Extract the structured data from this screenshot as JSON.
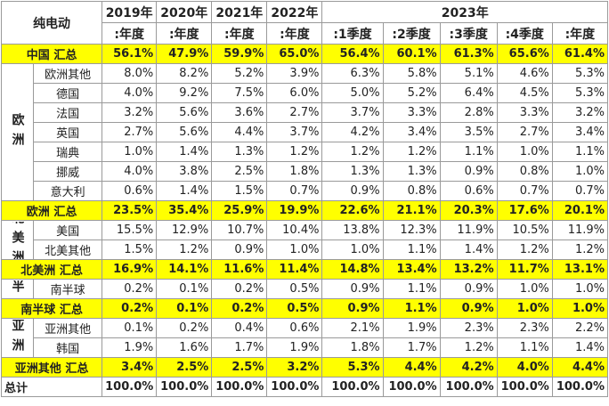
{
  "header": {
    "title": "纯电动",
    "years": [
      "2019年",
      "2020年",
      "2021年",
      "2022年"
    ],
    "year_2023": "2023年",
    "periods": [
      ":年度",
      ":年度",
      ":年度",
      ":年度",
      ":1季度",
      ":2季度",
      ":3季度",
      ":4季度",
      ":年度"
    ]
  },
  "sections": [
    {
      "total": {
        "label": "中国 汇总",
        "values": [
          "56.1%",
          "47.9%",
          "59.9%",
          "65.0%",
          "56.4%",
          "60.1%",
          "61.3%",
          "65.6%",
          "61.4%"
        ]
      }
    },
    {
      "region": "欧洲",
      "rows": [
        {
          "name": "欧洲其他",
          "values": [
            "8.0%",
            "8.2%",
            "5.2%",
            "3.9%",
            "6.3%",
            "5.8%",
            "5.1%",
            "4.6%",
            "5.3%"
          ]
        },
        {
          "name": "德国",
          "values": [
            "4.0%",
            "9.2%",
            "7.5%",
            "6.0%",
            "5.0%",
            "5.2%",
            "6.4%",
            "4.5%",
            "5.3%"
          ]
        },
        {
          "name": "法国",
          "values": [
            "3.2%",
            "5.6%",
            "3.6%",
            "2.7%",
            "3.7%",
            "3.3%",
            "2.8%",
            "3.3%",
            "3.2%"
          ]
        },
        {
          "name": "英国",
          "values": [
            "2.7%",
            "5.6%",
            "4.4%",
            "3.7%",
            "4.2%",
            "3.4%",
            "3.5%",
            "2.7%",
            "3.4%"
          ]
        },
        {
          "name": "瑞典",
          "values": [
            "1.0%",
            "1.4%",
            "1.3%",
            "1.2%",
            "1.2%",
            "1.2%",
            "1.1%",
            "1.0%",
            "1.1%"
          ]
        },
        {
          "name": "挪威",
          "values": [
            "4.0%",
            "3.8%",
            "2.5%",
            "1.8%",
            "1.3%",
            "1.3%",
            "0.9%",
            "0.8%",
            "1.0%"
          ]
        },
        {
          "name": "意大利",
          "values": [
            "0.6%",
            "1.4%",
            "1.5%",
            "0.7%",
            "0.9%",
            "0.8%",
            "0.6%",
            "0.7%",
            "0.7%"
          ]
        }
      ],
      "total": {
        "label": "欧洲 汇总",
        "values": [
          "23.5%",
          "35.4%",
          "25.9%",
          "19.9%",
          "22.6%",
          "21.1%",
          "20.3%",
          "17.6%",
          "20.1%"
        ]
      }
    },
    {
      "region": "北美洲",
      "rows": [
        {
          "name": "美国",
          "values": [
            "15.5%",
            "12.9%",
            "10.7%",
            "10.4%",
            "13.8%",
            "12.3%",
            "11.9%",
            "10.5%",
            "11.9%"
          ]
        },
        {
          "name": "北美其他",
          "values": [
            "1.5%",
            "1.2%",
            "0.9%",
            "1.0%",
            "1.0%",
            "1.1%",
            "1.4%",
            "1.2%",
            "1.2%"
          ]
        }
      ],
      "total": {
        "label": "北美洲 汇总",
        "values": [
          "16.9%",
          "14.1%",
          "11.6%",
          "11.4%",
          "14.8%",
          "13.4%",
          "13.2%",
          "11.7%",
          "13.1%"
        ]
      }
    },
    {
      "region": "南半球",
      "rows": [
        {
          "name": "南半球",
          "values": [
            "0.2%",
            "0.1%",
            "0.2%",
            "0.5%",
            "0.9%",
            "1.1%",
            "0.9%",
            "1.0%",
            "1.0%"
          ]
        }
      ],
      "total": {
        "label": "南半球 汇总",
        "values": [
          "0.2%",
          "0.1%",
          "0.2%",
          "0.5%",
          "0.9%",
          "1.1%",
          "0.9%",
          "1.0%",
          "1.0%"
        ]
      }
    },
    {
      "region": "亚洲",
      "rows": [
        {
          "name": "亚洲其他",
          "values": [
            "0.1%",
            "0.2%",
            "0.4%",
            "0.6%",
            "2.1%",
            "1.9%",
            "2.3%",
            "2.3%",
            "2.2%"
          ]
        },
        {
          "name": "韩国",
          "values": [
            "1.9%",
            "1.6%",
            "1.7%",
            "1.9%",
            "1.8%",
            "1.7%",
            "1.2%",
            "1.1%",
            "1.4%"
          ]
        }
      ],
      "total": {
        "label": "亚洲其他 汇总",
        "values": [
          "3.4%",
          "2.5%",
          "2.5%",
          "3.2%",
          "5.3%",
          "4.4%",
          "4.2%",
          "4.0%",
          "4.4%"
        ]
      }
    }
  ],
  "grand_total": {
    "label": "总计",
    "values": [
      "100.0%",
      "100.0%",
      "100.0%",
      "100.0%",
      "100.0%",
      "100.0%",
      "100.0%",
      "100.0%",
      "100.0%"
    ]
  }
}
